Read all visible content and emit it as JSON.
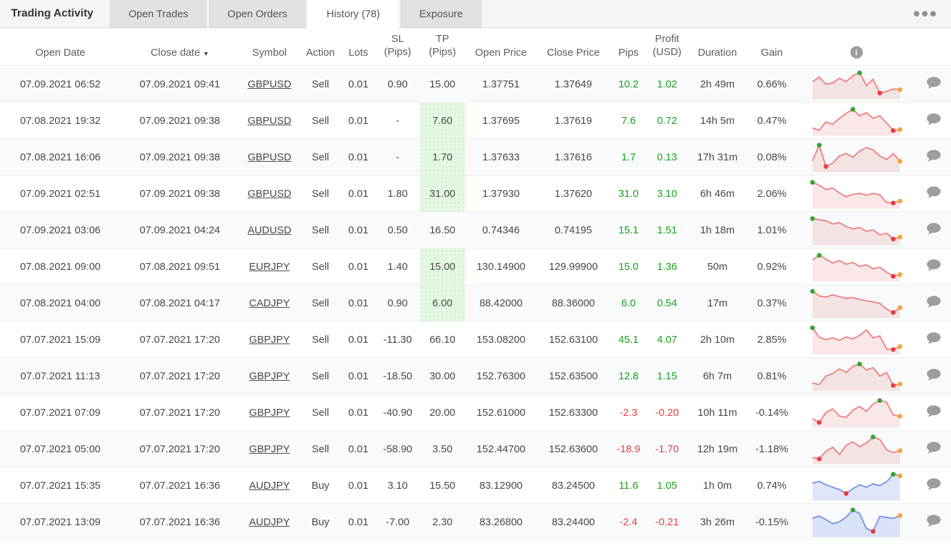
{
  "tabs": {
    "title": "Trading Activity",
    "items": [
      {
        "label": "Open Trades",
        "active": false
      },
      {
        "label": "Open Orders",
        "active": false
      },
      {
        "label": "History (78)",
        "active": true
      },
      {
        "label": "Exposure",
        "active": false
      }
    ],
    "more_options_icon": "ellipsis"
  },
  "colors": {
    "positive": "#17a21a",
    "negative": "#e64141",
    "tp_highlight": "#e5f8e3",
    "sell": {
      "line": "#ee8585",
      "fill": "rgba(230,120,120,0.18)"
    },
    "buy": {
      "line": "#7e96e6",
      "fill": "rgba(110,140,230,0.22)"
    },
    "dot_high": "#33a532",
    "dot_low": "#e53e3e",
    "dot_close": "#f5a33c",
    "comment_icon": "#9d9d9d"
  },
  "table": {
    "headers": {
      "open_date": "Open Date",
      "close_date": "Close date",
      "sort_indicator": "▼",
      "symbol": "Symbol",
      "action": "Action",
      "lots": "Lots",
      "sl_line1": "SL",
      "sl_line2": "(Pips)",
      "tp_line1": "TP",
      "tp_line2": "(Pips)",
      "open_price": "Open Price",
      "close_price": "Close Price",
      "pips": "Pips",
      "profit_line1": "Profit",
      "profit_line2": "(USD)",
      "duration": "Duration",
      "gain": "Gain",
      "info_icon": "i"
    },
    "rows": [
      {
        "open_date": "07.09.2021 06:52",
        "close_date": "07.09.2021 09:41",
        "symbol": "GBPUSD",
        "action": "Sell",
        "lots": "0.01",
        "sl": "0.90",
        "tp": "15.00",
        "tp_highlight": false,
        "open_price": "1.37751",
        "close_price": "1.37649",
        "pips": "10.2",
        "profit": "1.02",
        "duration": "2h 49m",
        "gain": "0.66%",
        "spark": {
          "type": "sell",
          "points": [
            55,
            75,
            45,
            50,
            70,
            55,
            80,
            92,
            40,
            65,
            8,
            15,
            25,
            22
          ]
        }
      },
      {
        "open_date": "07.08.2021 19:32",
        "close_date": "07.09.2021 09:38",
        "symbol": "GBPUSD",
        "action": "Sell",
        "lots": "0.01",
        "sl": "-",
        "tp": "7.60",
        "tp_highlight": true,
        "open_price": "1.37695",
        "close_price": "1.37619",
        "pips": "7.6",
        "profit": "0.72",
        "duration": "14h 5m",
        "gain": "0.47%",
        "spark": {
          "type": "sell",
          "points": [
            15,
            5,
            40,
            30,
            55,
            75,
            92,
            65,
            78,
            55,
            65,
            35,
            4,
            8
          ]
        }
      },
      {
        "open_date": "07.08.2021 16:06",
        "close_date": "07.09.2021 09:38",
        "symbol": "GBPUSD",
        "action": "Sell",
        "lots": "0.01",
        "sl": "-",
        "tp": "1.70",
        "tp_highlight": true,
        "open_price": "1.37633",
        "close_price": "1.37616",
        "pips": "1.7",
        "profit": "0.13",
        "duration": "17h 31m",
        "gain": "0.08%",
        "spark": {
          "type": "sell",
          "points": [
            30,
            95,
            6,
            20,
            50,
            60,
            45,
            70,
            85,
            75,
            50,
            35,
            60,
            28
          ]
        }
      },
      {
        "open_date": "07.09.2021 02:51",
        "close_date": "07.09.2021 09:38",
        "symbol": "GBPUSD",
        "action": "Sell",
        "lots": "0.01",
        "sl": "1.80",
        "tp": "31.00",
        "tp_highlight": true,
        "open_price": "1.37930",
        "close_price": "1.37620",
        "pips": "31.0",
        "profit": "3.10",
        "duration": "6h 46m",
        "gain": "2.06%",
        "spark": {
          "type": "sell",
          "points": [
            92,
            80,
            62,
            68,
            48,
            32,
            42,
            46,
            38,
            46,
            40,
            8,
            6,
            14
          ]
        }
      },
      {
        "open_date": "07.09.2021 03:06",
        "close_date": "07.09.2021 04:24",
        "symbol": "AUDUSD",
        "action": "Sell",
        "lots": "0.01",
        "sl": "0.50",
        "tp": "16.50",
        "tp_highlight": false,
        "open_price": "0.74346",
        "close_price": "0.74195",
        "pips": "15.1",
        "profit": "1.51",
        "duration": "1h 18m",
        "gain": "1.01%",
        "spark": {
          "type": "sell",
          "points": [
            93,
            88,
            84,
            70,
            76,
            60,
            50,
            56,
            40,
            46,
            25,
            32,
            8,
            16
          ]
        }
      },
      {
        "open_date": "07.08.2021 09:00",
        "close_date": "07.08.2021 09:51",
        "symbol": "EURJPY",
        "action": "Sell",
        "lots": "0.01",
        "sl": "1.40",
        "tp": "15.00",
        "tp_highlight": true,
        "open_price": "130.14900",
        "close_price": "129.99900",
        "pips": "15.0",
        "profit": "1.36",
        "duration": "50m",
        "gain": "0.92%",
        "spark": {
          "type": "sell",
          "points": [
            72,
            92,
            76,
            60,
            70,
            55,
            62,
            46,
            52,
            36,
            42,
            22,
            5,
            12
          ]
        }
      },
      {
        "open_date": "07.08.2021 04:00",
        "close_date": "07.08.2021 04:17",
        "symbol": "CADJPY",
        "action": "Sell",
        "lots": "0.01",
        "sl": "0.90",
        "tp": "6.00",
        "tp_highlight": true,
        "open_price": "88.42000",
        "close_price": "88.36000",
        "pips": "6.0",
        "profit": "0.54",
        "duration": "17m",
        "gain": "0.37%",
        "spark": {
          "type": "sell",
          "points": [
            94,
            75,
            70,
            79,
            72,
            65,
            68,
            60,
            55,
            50,
            44,
            20,
            6,
            26
          ]
        }
      },
      {
        "open_date": "07.07.2021 15:09",
        "close_date": "07.07.2021 17:20",
        "symbol": "GBPJPY",
        "action": "Sell",
        "lots": "0.01",
        "sl": "-11.30",
        "tp": "66.10",
        "tp_highlight": false,
        "open_price": "153.08200",
        "close_price": "152.63100",
        "pips": "45.1",
        "profit": "4.07",
        "duration": "2h 10m",
        "gain": "2.85%",
        "spark": {
          "type": "sell",
          "points": [
            94,
            55,
            45,
            52,
            42,
            56,
            48,
            62,
            85,
            52,
            60,
            6,
            4,
            16
          ]
        }
      },
      {
        "open_date": "07.07.2021 11:13",
        "close_date": "07.07.2021 17:20",
        "symbol": "GBPJPY",
        "action": "Sell",
        "lots": "0.01",
        "sl": "-18.50",
        "tp": "30.00",
        "tp_highlight": false,
        "open_price": "152.76300",
        "close_price": "152.63500",
        "pips": "12.8",
        "profit": "1.15",
        "duration": "6h 7m",
        "gain": "0.81%",
        "spark": {
          "type": "sell",
          "points": [
            16,
            10,
            45,
            56,
            75,
            60,
            85,
            95,
            70,
            80,
            45,
            60,
            6,
            12
          ]
        }
      },
      {
        "open_date": "07.07.2021 07:09",
        "close_date": "07.07.2021 17:20",
        "symbol": "GBPJPY",
        "action": "Sell",
        "lots": "0.01",
        "sl": "-40.90",
        "tp": "20.00",
        "tp_highlight": false,
        "open_price": "152.61000",
        "close_price": "152.63300",
        "pips": "-2.3",
        "profit": "-0.20",
        "duration": "10h 11m",
        "gain": "-0.14%",
        "spark": {
          "type": "sell",
          "points": [
            20,
            4,
            45,
            60,
            30,
            25,
            55,
            70,
            50,
            80,
            95,
            88,
            35,
            30
          ]
        }
      },
      {
        "open_date": "07.07.2021 05:00",
        "close_date": "07.07.2021 17:20",
        "symbol": "GBPJPY",
        "action": "Sell",
        "lots": "0.01",
        "sl": "-58.90",
        "tp": "3.50",
        "tp_highlight": false,
        "open_price": "152.44700",
        "close_price": "152.63600",
        "pips": "-18.9",
        "profit": "-1.70",
        "duration": "12h 19m",
        "gain": "-1.18%",
        "spark": {
          "type": "sell",
          "points": [
            10,
            4,
            36,
            52,
            22,
            60,
            75,
            55,
            70,
            95,
            85,
            42,
            30,
            38
          ]
        }
      },
      {
        "open_date": "07.07.2021 15:35",
        "close_date": "07.07.2021 16:36",
        "symbol": "AUDJPY",
        "action": "Buy",
        "lots": "0.01",
        "sl": "3.10",
        "tp": "15.50",
        "tp_highlight": false,
        "open_price": "83.12900",
        "close_price": "83.24500",
        "pips": "11.6",
        "profit": "1.05",
        "duration": "1h 0m",
        "gain": "0.74%",
        "spark": {
          "type": "buy",
          "points": [
            55,
            62,
            48,
            38,
            28,
            12,
            32,
            48,
            38,
            52,
            45,
            60,
            92,
            85
          ]
        }
      },
      {
        "open_date": "07.07.2021 13:09",
        "close_date": "07.07.2021 16:36",
        "symbol": "AUDJPY",
        "action": "Buy",
        "lots": "0.01",
        "sl": "-7.00",
        "tp": "2.30",
        "tp_highlight": false,
        "open_price": "83.26800",
        "close_price": "83.24400",
        "pips": "-2.4",
        "profit": "-0.21",
        "duration": "3h 26m",
        "gain": "-0.15%",
        "spark": {
          "type": "buy",
          "points": [
            60,
            70,
            55,
            38,
            46,
            66,
            95,
            80,
            18,
            6,
            68,
            64,
            60,
            72
          ]
        }
      }
    ]
  }
}
